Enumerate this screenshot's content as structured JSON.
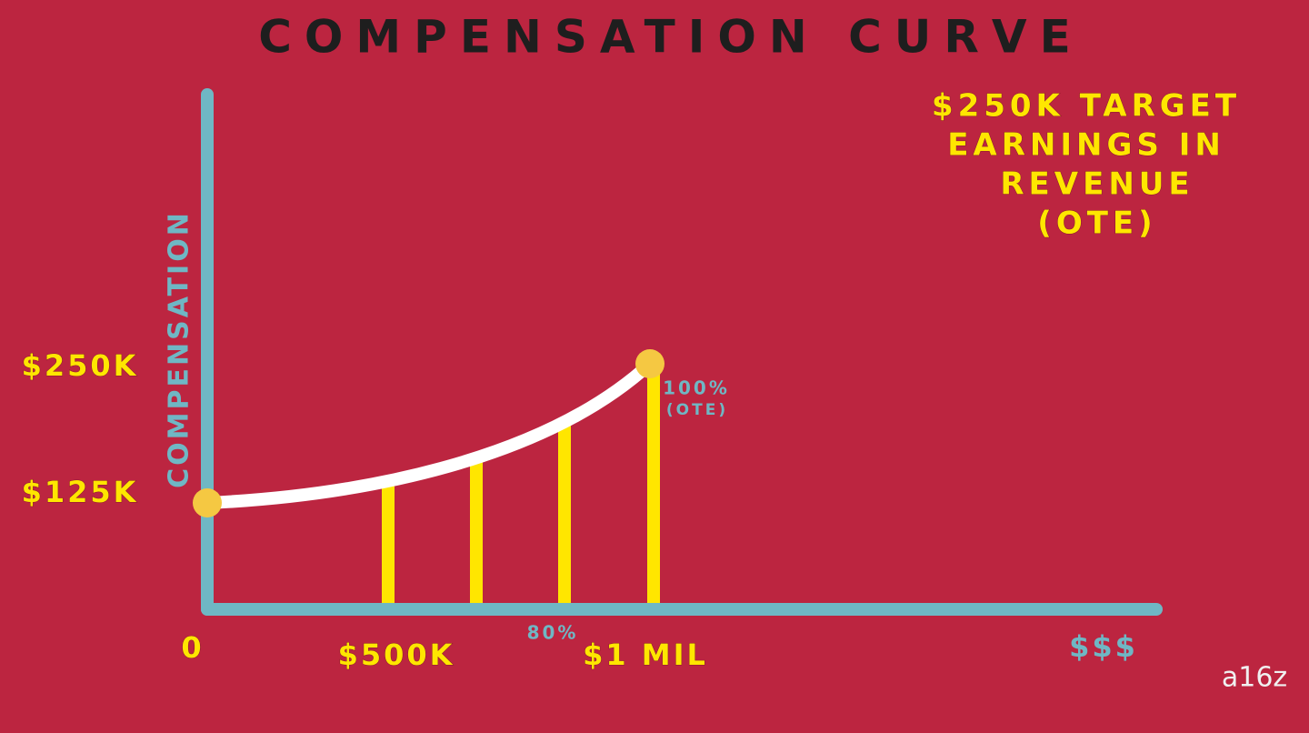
{
  "title": "COMPENSATION CURVE",
  "annotation": {
    "lines": [
      "$250K TARGET",
      "EARNINGS IN",
      "REVENUE",
      "(OTE)"
    ]
  },
  "y_axis": {
    "label": "COMPENSATION",
    "ticks": [
      "$250K",
      "$125K"
    ]
  },
  "x_axis": {
    "ticks": [
      "0",
      "$500K",
      "$1 MIL",
      "$$$"
    ]
  },
  "point_labels": {
    "eighty": "80%",
    "hundred": "100%",
    "hundred_note": "(OTE)"
  },
  "logo": "a16z"
}
